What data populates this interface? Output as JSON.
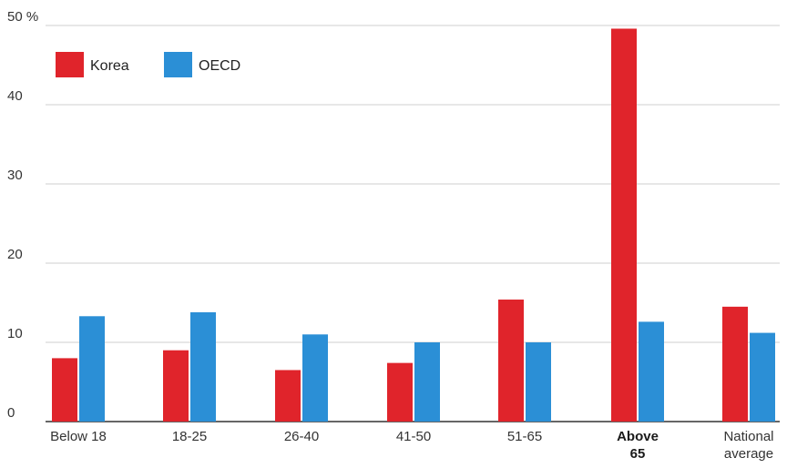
{
  "chart_data": {
    "type": "bar",
    "title": "",
    "xlabel": "",
    "ylabel": "",
    "ylim": [
      0,
      50
    ],
    "y_ticks": [
      "0",
      "10",
      "20",
      "30",
      "40",
      "50 %"
    ],
    "grid": true,
    "legend_position": "top-left",
    "categories": [
      {
        "lines": [
          "Below 18"
        ],
        "bold": false
      },
      {
        "lines": [
          "18-25"
        ],
        "bold": false
      },
      {
        "lines": [
          "26-40"
        ],
        "bold": false
      },
      {
        "lines": [
          "41-50"
        ],
        "bold": false
      },
      {
        "lines": [
          "51-65"
        ],
        "bold": false
      },
      {
        "lines": [
          "Above",
          "65"
        ],
        "bold": true
      },
      {
        "lines": [
          "National",
          "average"
        ],
        "bold": false
      }
    ],
    "series": [
      {
        "name": "Korea",
        "color": "#e0242b",
        "values": [
          8.0,
          9.0,
          6.5,
          7.4,
          15.4,
          49.6,
          14.5
        ]
      },
      {
        "name": "OECD",
        "color": "#2b8fd6",
        "values": [
          13.3,
          13.8,
          11.0,
          10.0,
          10.0,
          12.6,
          11.2
        ]
      }
    ]
  }
}
